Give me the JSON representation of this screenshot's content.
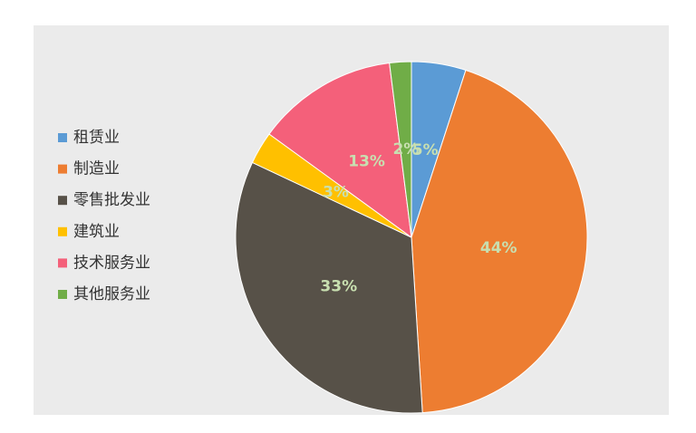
{
  "chart_data": {
    "type": "pie",
    "categories": [
      "租赁业",
      "制造业",
      "零售批发业",
      "建筑业",
      "技术服务业",
      "其他服务业"
    ],
    "values": [
      5,
      44,
      33,
      3,
      13,
      2
    ],
    "value_labels": [
      "5%",
      "44%",
      "33%",
      "3%",
      "13%",
      "2%"
    ],
    "colors": [
      "#5b9bd5",
      "#ed7d31",
      "#575148",
      "#ffc000",
      "#f4607a",
      "#70ad47"
    ],
    "legend": "left"
  }
}
